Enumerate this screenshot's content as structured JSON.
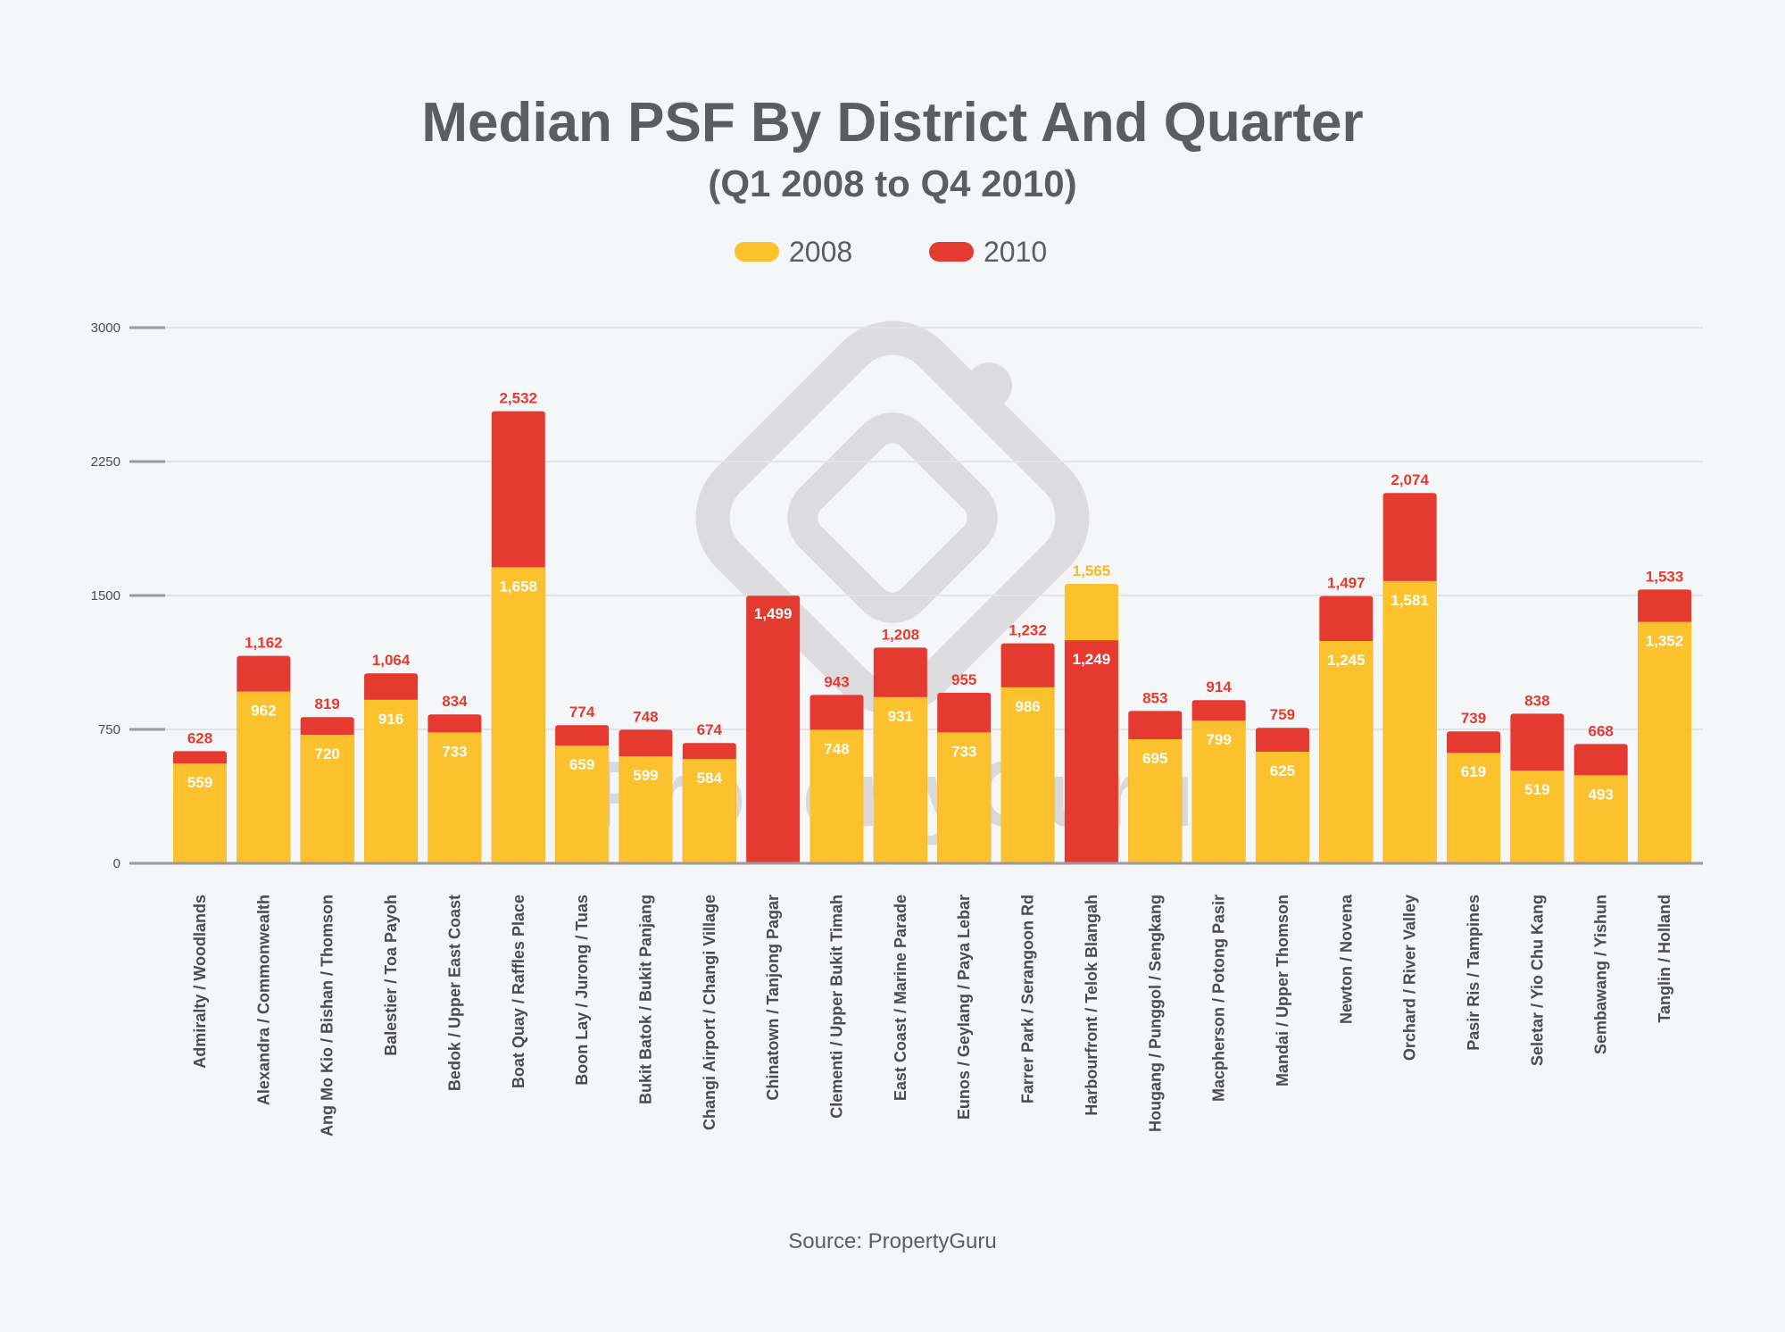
{
  "chart_data": {
    "type": "bar",
    "title": "Median PSF By District And Quarter",
    "subtitle": "(Q1 2008 to Q4 2010)",
    "source": "Source: PropertyGuru",
    "watermark": "PropertyGuru",
    "ylim": [
      0,
      3000
    ],
    "yticks": [
      "0",
      "750",
      "1500",
      "2250",
      "3000"
    ],
    "ytick_values": [
      0,
      750,
      1500,
      2250,
      3000
    ],
    "grid": true,
    "legend_position": "top-center",
    "colors": {
      "2008": "#fcc22d",
      "2010": "#e53a2f",
      "axis": "#9a9b9f",
      "grid": "#e2e3e6",
      "label_2008": "#f7b928"
    },
    "categories": [
      "Admiralty / Woodlands",
      "Alexandra / Commonwealth",
      "Ang Mo Kio / Bishan / Thomson",
      "Balestier / Toa Payoh",
      "Bedok / Upper East Coast",
      "Boat Quay / Raffles Place",
      "Boon Lay / Jurong / Tuas",
      "Bukit Batok / Bukit Panjang",
      "Changi Airport / Changi Village",
      "Chinatown / Tanjong Pagar",
      "Clementi / Upper Bukit Timah",
      "East Coast / Marine Parade",
      "Eunos / Geylang / Paya Lebar",
      "Farrer Park / Serangoon Rd",
      "Harbourfront / Telok Blangah",
      "Hougang / Punggol / Sengkang",
      "Macpherson / Potong Pasir",
      "Mandai / Upper Thomson",
      "Newton / Novena",
      "Orchard / River Valley",
      "Pasir Ris / Tampines",
      "Seletar / Yio Chu Kang",
      "Sembawang / Yishun",
      "Tanglin / Holland"
    ],
    "series": [
      {
        "name": "2008",
        "values": [
          559,
          962,
          720,
          916,
          733,
          1658,
          659,
          599,
          584,
          null,
          748,
          931,
          733,
          986,
          1565,
          695,
          799,
          625,
          1245,
          1581,
          619,
          519,
          493,
          1352
        ],
        "labels": [
          "559",
          "962",
          "720",
          "916",
          "733",
          "1,658",
          "659",
          "599",
          "584",
          "",
          "748",
          "931",
          "733",
          "986",
          "1,565",
          "695",
          "799",
          "625",
          "1,245",
          "1,581",
          "619",
          "519",
          "493",
          "1,352"
        ]
      },
      {
        "name": "2010",
        "values": [
          628,
          1162,
          819,
          1064,
          834,
          2532,
          774,
          748,
          674,
          1499,
          943,
          1208,
          955,
          1232,
          1249,
          853,
          914,
          759,
          1497,
          2074,
          739,
          838,
          668,
          1533
        ],
        "labels": [
          "628",
          "1,162",
          "819",
          "1,064",
          "834",
          "2,532",
          "774",
          "748",
          "674",
          "1,499",
          "943",
          "1,208",
          "955",
          "1,232",
          "1,249",
          "853",
          "914",
          "759",
          "1,497",
          "2,074",
          "739",
          "838",
          "668",
          "1,533"
        ]
      }
    ]
  }
}
